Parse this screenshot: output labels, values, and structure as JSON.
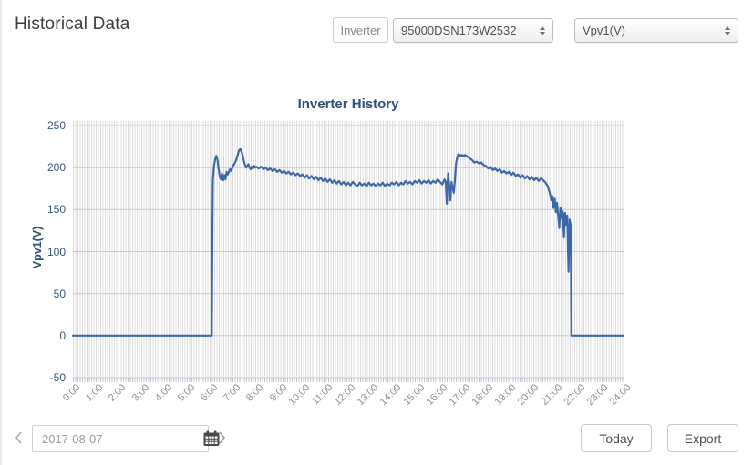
{
  "header": {
    "title": "Historical Data"
  },
  "toolbar": {
    "inverter_label": "Inverter",
    "inverter_select": {
      "value": "95000DSN173W2532"
    },
    "param_select": {
      "value": "Vpv1(V)"
    }
  },
  "footer": {
    "date_value": "2017-08-07",
    "today_label": "Today",
    "export_label": "Export"
  },
  "icons": {
    "chevron_left": "‹",
    "chevron_right": "›",
    "calendar": "grid-calendar glyph (CSS/SVG shape)",
    "select_stepper": "up/down triangles (CSS shape)"
  },
  "colors": {
    "line": "#3c69a5",
    "chart_text": "#2e5077",
    "y_tick_text": "#33567f",
    "x_tick_text": "#8e8e8e",
    "major_grid": "#c7c7c7",
    "minor_grid": "#dcdcdc"
  },
  "chart_data": {
    "type": "line",
    "title": "Inverter History",
    "xlabel": "",
    "ylabel": "Vpv1(V)",
    "ylim": [
      -50,
      250
    ],
    "xlim_hours": [
      0,
      24
    ],
    "grid": "horizontal major every 50; dense vertical minor (~5-min) stripes",
    "legend": "none",
    "y_ticks": [
      -50,
      0,
      50,
      100,
      150,
      200,
      250
    ],
    "x_ticks": [
      "0:00",
      "1:00",
      "2:00",
      "3:00",
      "4:00",
      "5:00",
      "6:00",
      "7:00",
      "8:00",
      "9:00",
      "10:00",
      "11:00",
      "12:00",
      "13:00",
      "14:00",
      "15:00",
      "16:00",
      "17:00",
      "18:00",
      "19:00",
      "20:00",
      "21:00",
      "22:00",
      "23:00",
      "24:00"
    ],
    "line_color": "#3c69a5",
    "grid_color": "#c7c7c7",
    "series": [
      {
        "name": "Vpv1(V)",
        "x_unit": "hours",
        "points": [
          [
            0,
            0
          ],
          [
            1,
            0
          ],
          [
            2,
            0
          ],
          [
            3,
            0
          ],
          [
            4,
            0
          ],
          [
            5,
            0
          ],
          [
            6.05,
            0
          ],
          [
            6.08,
            120
          ],
          [
            6.1,
            185
          ],
          [
            6.15,
            202
          ],
          [
            6.2,
            210
          ],
          [
            6.25,
            214
          ],
          [
            6.3,
            209
          ],
          [
            6.35,
            199
          ],
          [
            6.4,
            189
          ],
          [
            6.45,
            186
          ],
          [
            6.5,
            193
          ],
          [
            6.55,
            185
          ],
          [
            6.6,
            191
          ],
          [
            6.65,
            186
          ],
          [
            6.7,
            195
          ],
          [
            6.75,
            192
          ],
          [
            6.8,
            195
          ],
          [
            6.85,
            198
          ],
          [
            6.9,
            196
          ],
          [
            6.95,
            200
          ],
          [
            7.0,
            203
          ],
          [
            7.05,
            205
          ],
          [
            7.1,
            208
          ],
          [
            7.15,
            212
          ],
          [
            7.2,
            217
          ],
          [
            7.25,
            221
          ],
          [
            7.3,
            222
          ],
          [
            7.35,
            219
          ],
          [
            7.4,
            214
          ],
          [
            7.45,
            208
          ],
          [
            7.5,
            203
          ],
          [
            7.55,
            200
          ],
          [
            7.6,
            202
          ],
          [
            7.65,
            204
          ],
          [
            7.7,
            200
          ],
          [
            7.75,
            198
          ],
          [
            7.8,
            201
          ],
          [
            7.85,
            199
          ],
          [
            7.9,
            202
          ],
          [
            7.95,
            200
          ],
          [
            8.0,
            201
          ],
          [
            8.1,
            199
          ],
          [
            8.2,
            201
          ],
          [
            8.3,
            198
          ],
          [
            8.4,
            200
          ],
          [
            8.5,
            197
          ],
          [
            8.6,
            199
          ],
          [
            8.7,
            196
          ],
          [
            8.8,
            198
          ],
          [
            8.9,
            195
          ],
          [
            9.0,
            197
          ],
          [
            9.1,
            194
          ],
          [
            9.2,
            196
          ],
          [
            9.3,
            193
          ],
          [
            9.4,
            195
          ],
          [
            9.5,
            192
          ],
          [
            9.6,
            194
          ],
          [
            9.7,
            191
          ],
          [
            9.8,
            193
          ],
          [
            9.9,
            190
          ],
          [
            10.0,
            192
          ],
          [
            10.1,
            188
          ],
          [
            10.2,
            191
          ],
          [
            10.3,
            187
          ],
          [
            10.4,
            190
          ],
          [
            10.5,
            186
          ],
          [
            10.6,
            189
          ],
          [
            10.7,
            185
          ],
          [
            10.8,
            188
          ],
          [
            10.9,
            184
          ],
          [
            11.0,
            187
          ],
          [
            11.1,
            183
          ],
          [
            11.2,
            186
          ],
          [
            11.3,
            182
          ],
          [
            11.4,
            185
          ],
          [
            11.5,
            181
          ],
          [
            11.6,
            184
          ],
          [
            11.7,
            180
          ],
          [
            11.8,
            183
          ],
          [
            11.9,
            179
          ],
          [
            12.0,
            182
          ],
          [
            12.1,
            179
          ],
          [
            12.2,
            183
          ],
          [
            12.3,
            180
          ],
          [
            12.4,
            178
          ],
          [
            12.5,
            182
          ],
          [
            12.6,
            179
          ],
          [
            12.7,
            181
          ],
          [
            12.8,
            178
          ],
          [
            12.9,
            182
          ],
          [
            13.0,
            179
          ],
          [
            13.1,
            181
          ],
          [
            13.2,
            178
          ],
          [
            13.3,
            181
          ],
          [
            13.4,
            179
          ],
          [
            13.5,
            182
          ],
          [
            13.6,
            178
          ],
          [
            13.7,
            181
          ],
          [
            13.8,
            179
          ],
          [
            13.9,
            182
          ],
          [
            14.0,
            180
          ],
          [
            14.1,
            183
          ],
          [
            14.2,
            179
          ],
          [
            14.3,
            182
          ],
          [
            14.4,
            180
          ],
          [
            14.5,
            184
          ],
          [
            14.6,
            181
          ],
          [
            14.7,
            183
          ],
          [
            14.8,
            180
          ],
          [
            14.9,
            184
          ],
          [
            15.0,
            182
          ],
          [
            15.1,
            185
          ],
          [
            15.2,
            181
          ],
          [
            15.3,
            184
          ],
          [
            15.4,
            182
          ],
          [
            15.5,
            185
          ],
          [
            15.6,
            181
          ],
          [
            15.7,
            184
          ],
          [
            15.8,
            182
          ],
          [
            15.9,
            186
          ],
          [
            16.0,
            183
          ],
          [
            16.1,
            180
          ],
          [
            16.2,
            186
          ],
          [
            16.25,
            183
          ],
          [
            16.3,
            157
          ],
          [
            16.35,
            193
          ],
          [
            16.4,
            180
          ],
          [
            16.45,
            161
          ],
          [
            16.5,
            183
          ],
          [
            16.55,
            176
          ],
          [
            16.6,
            170
          ],
          [
            16.65,
            185
          ],
          [
            16.7,
            205
          ],
          [
            16.75,
            212
          ],
          [
            16.8,
            216
          ],
          [
            16.85,
            215
          ],
          [
            16.9,
            214
          ],
          [
            16.95,
            215
          ],
          [
            17.0,
            214
          ],
          [
            17.1,
            215
          ],
          [
            17.2,
            213
          ],
          [
            17.3,
            211
          ],
          [
            17.4,
            209
          ],
          [
            17.5,
            206
          ],
          [
            17.6,
            207
          ],
          [
            17.7,
            205
          ],
          [
            17.8,
            206
          ],
          [
            17.9,
            203
          ],
          [
            18.0,
            202
          ],
          [
            18.1,
            199
          ],
          [
            18.2,
            201
          ],
          [
            18.3,
            197
          ],
          [
            18.4,
            199
          ],
          [
            18.5,
            196
          ],
          [
            18.6,
            198
          ],
          [
            18.7,
            194
          ],
          [
            18.8,
            196
          ],
          [
            18.9,
            193
          ],
          [
            19.0,
            195
          ],
          [
            19.1,
            191
          ],
          [
            19.2,
            194
          ],
          [
            19.3,
            190
          ],
          [
            19.4,
            192
          ],
          [
            19.5,
            188
          ],
          [
            19.6,
            191
          ],
          [
            19.7,
            187
          ],
          [
            19.8,
            190
          ],
          [
            19.9,
            186
          ],
          [
            20.0,
            189
          ],
          [
            20.1,
            185
          ],
          [
            20.2,
            188
          ],
          [
            20.3,
            184
          ],
          [
            20.4,
            187
          ],
          [
            20.5,
            185
          ],
          [
            20.6,
            182
          ],
          [
            20.7,
            178
          ],
          [
            20.75,
            173
          ],
          [
            20.8,
            168
          ],
          [
            20.85,
            161
          ],
          [
            20.9,
            166
          ],
          [
            20.95,
            152
          ],
          [
            21.0,
            163
          ],
          [
            21.05,
            147
          ],
          [
            21.1,
            158
          ],
          [
            21.15,
            143
          ],
          [
            21.2,
            128
          ],
          [
            21.25,
            152
          ],
          [
            21.3,
            140
          ],
          [
            21.35,
            148
          ],
          [
            21.4,
            118
          ],
          [
            21.45,
            146
          ],
          [
            21.5,
            132
          ],
          [
            21.55,
            143
          ],
          [
            21.6,
            76
          ],
          [
            21.65,
            138
          ],
          [
            21.7,
            131
          ],
          [
            21.73,
            0
          ],
          [
            22.0,
            0
          ],
          [
            23.0,
            0
          ],
          [
            24.0,
            0
          ]
        ]
      }
    ]
  }
}
